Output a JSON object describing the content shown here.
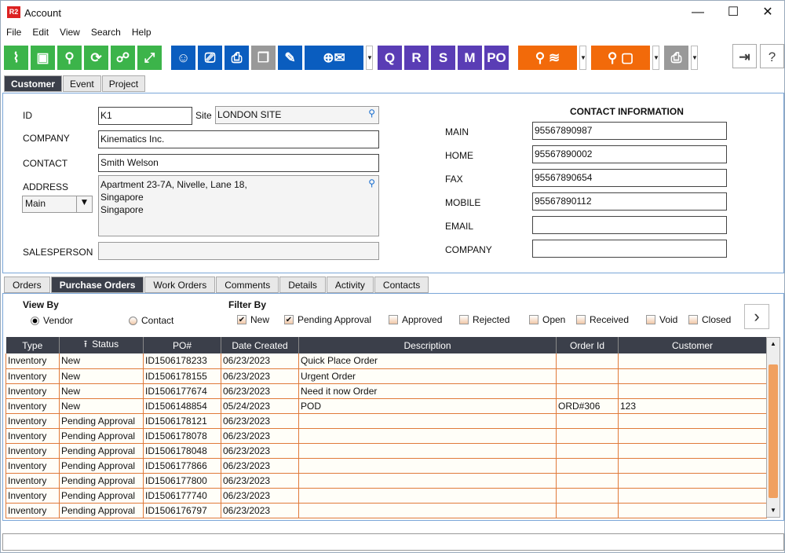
{
  "window": {
    "logo": "R2",
    "title": "Account",
    "minimize": "—",
    "maximize": "☐",
    "close": "✕"
  },
  "menu": [
    "File",
    "Edit",
    "View",
    "Search",
    "Help"
  ],
  "toolbar": [
    {
      "icon": "broom-icon",
      "cls": "g",
      "glyph": "⌇"
    },
    {
      "icon": "save-icon",
      "cls": "g",
      "glyph": "▣"
    },
    {
      "icon": "search-icon",
      "cls": "g",
      "glyph": "⚲"
    },
    {
      "icon": "refresh-icon",
      "cls": "g",
      "glyph": "⟳"
    },
    {
      "icon": "hierarchy-icon",
      "cls": "g",
      "glyph": "☍"
    },
    {
      "icon": "expand-icon",
      "cls": "g",
      "glyph": "⤢"
    },
    {
      "icon": "user-icon",
      "cls": "b",
      "glyph": "☺"
    },
    {
      "icon": "ticket-icon",
      "cls": "b",
      "glyph": "⎚"
    },
    {
      "icon": "printer-icon",
      "cls": "b",
      "glyph": "⎙"
    },
    {
      "icon": "copy-icon",
      "cls": "x",
      "glyph": "❐"
    },
    {
      "icon": "edit-form-icon",
      "cls": "b",
      "glyph": "✎"
    },
    {
      "icon": "add-email-icon",
      "cls": "b",
      "glyph": "⊕✉",
      "wide": 75,
      "dd": true
    },
    {
      "icon": "quote-doc-icon",
      "cls": "p",
      "glyph": "Q"
    },
    {
      "icon": "r-doc-icon",
      "cls": "p",
      "glyph": "R"
    },
    {
      "icon": "s-doc-icon",
      "cls": "p",
      "glyph": "S"
    },
    {
      "icon": "m-doc-icon",
      "cls": "p",
      "glyph": "M"
    },
    {
      "icon": "po-doc-icon",
      "cls": "p",
      "glyph": "PO"
    },
    {
      "icon": "search-stack-icon",
      "cls": "o",
      "glyph": "⚲ ≋",
      "wide": 75,
      "dd": true
    },
    {
      "icon": "search-box-icon",
      "cls": "o",
      "glyph": "⚲ ▢",
      "wide": 75,
      "dd": true
    },
    {
      "icon": "fax-icon",
      "cls": "x",
      "glyph": "⎙",
      "dd": true
    }
  ],
  "toolbar_right": {
    "exit": "⇥",
    "help": "?"
  },
  "tabs": [
    "Customer",
    "Event",
    "Project"
  ],
  "form": {
    "id_label": "ID",
    "id": "K1",
    "site_label": "Site",
    "site": "LONDON SITE",
    "company_label": "COMPANY",
    "company": "Kinematics Inc.",
    "contact_label": "CONTACT",
    "contact": "Smith Welson",
    "address_label": "ADDRESS",
    "address_type": "Main",
    "address": [
      "Apartment 23-7A, Nivelle, Lane 18,",
      "Singapore",
      "Singapore"
    ],
    "salesperson_label": "SALESPERSON",
    "salesperson": ""
  },
  "contact_info": {
    "title": "CONTACT INFORMATION",
    "rows": [
      {
        "label": "MAIN",
        "value": "95567890987"
      },
      {
        "label": "HOME",
        "value": "95567890002"
      },
      {
        "label": "FAX",
        "value": "95567890654"
      },
      {
        "label": "MOBILE",
        "value": "95567890112"
      },
      {
        "label": "EMAIL",
        "value": ""
      },
      {
        "label": "COMPANY",
        "value": ""
      }
    ]
  },
  "subtabs": [
    "Orders",
    "Purchase Orders",
    "Work Orders",
    "Comments",
    "Details",
    "Activity",
    "Contacts"
  ],
  "view_by": {
    "label": "View By",
    "options": [
      {
        "label": "Vendor",
        "selected": true
      },
      {
        "label": "Contact",
        "selected": false
      }
    ]
  },
  "filter_by": {
    "label": "Filter By",
    "options": [
      {
        "label": "New",
        "checked": true
      },
      {
        "label": "Pending Approval",
        "checked": true
      },
      {
        "label": "Approved",
        "checked": false
      },
      {
        "label": "Rejected",
        "checked": false
      },
      {
        "label": "Open",
        "checked": false
      },
      {
        "label": "Received",
        "checked": false
      },
      {
        "label": "Void",
        "checked": false
      },
      {
        "label": "Closed",
        "checked": false
      }
    ]
  },
  "table": {
    "columns": [
      "Type",
      "Status",
      "PO#",
      "Date Created",
      "Description",
      "Order Id",
      "Customer"
    ],
    "rows": [
      [
        "Inventory",
        "New",
        "ID1506178233",
        "06/23/2023",
        "Quick Place Order",
        "",
        ""
      ],
      [
        "Inventory",
        "New",
        "ID1506178155",
        "06/23/2023",
        "Urgent Order",
        "",
        ""
      ],
      [
        "Inventory",
        "New",
        "ID1506177674",
        "06/23/2023",
        "Need it now Order",
        "",
        ""
      ],
      [
        "Inventory",
        "New",
        "ID1506148854",
        "05/24/2023",
        "POD",
        "ORD#306",
        "123"
      ],
      [
        "Inventory",
        "Pending Approval",
        "ID1506178121",
        "06/23/2023",
        "",
        "",
        ""
      ],
      [
        "Inventory",
        "Pending Approval",
        "ID1506178078",
        "06/23/2023",
        "",
        "",
        ""
      ],
      [
        "Inventory",
        "Pending Approval",
        "ID1506178048",
        "06/23/2023",
        "",
        "",
        ""
      ],
      [
        "Inventory",
        "Pending Approval",
        "ID1506177866",
        "06/23/2023",
        "",
        "",
        ""
      ],
      [
        "Inventory",
        "Pending Approval",
        "ID1506177800",
        "06/23/2023",
        "",
        "",
        ""
      ],
      [
        "Inventory",
        "Pending Approval",
        "ID1506177740",
        "06/23/2023",
        "",
        "",
        ""
      ],
      [
        "Inventory",
        "Pending Approval",
        "ID1506176797",
        "06/23/2023",
        "",
        "",
        ""
      ]
    ]
  }
}
